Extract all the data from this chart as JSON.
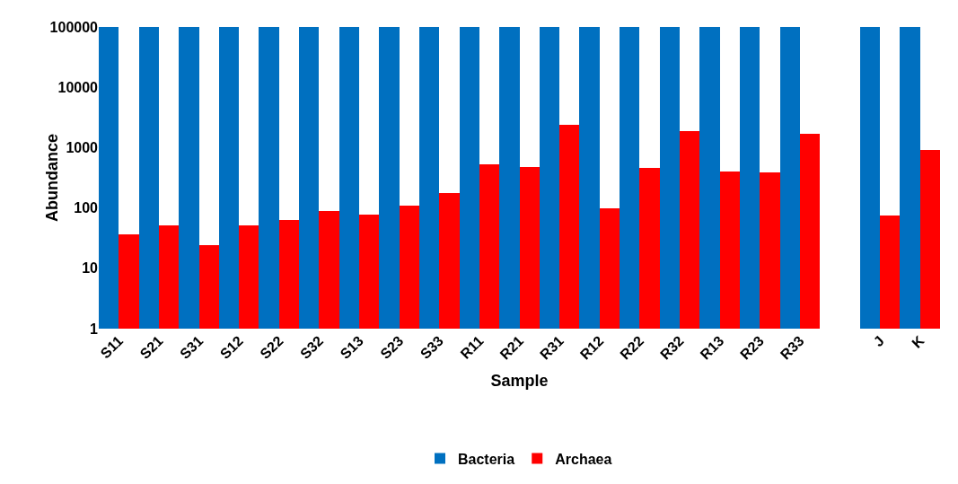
{
  "chart_data": {
    "type": "bar",
    "xlabel": "Sample",
    "ylabel": "Abundance",
    "categories": [
      "S11",
      "S21",
      "S31",
      "S12",
      "S22",
      "S32",
      "S13",
      "S23",
      "S33",
      "R11",
      "R21",
      "R31",
      "R12",
      "R22",
      "R32",
      "R13",
      "R23",
      "R33",
      null,
      "J",
      "K"
    ],
    "series": [
      {
        "name": "Bacteria",
        "color": "#0070c0",
        "values": [
          100000,
          100000,
          100000,
          100000,
          100000,
          100000,
          100000,
          100000,
          100000,
          100000,
          100000,
          100000,
          100000,
          100000,
          100000,
          100000,
          100000,
          100000,
          null,
          100000,
          100000
        ]
      },
      {
        "name": "Archaea",
        "color": "#ff0000",
        "values": [
          37,
          51,
          24,
          51,
          63,
          90,
          78,
          108,
          176,
          530,
          475,
          2400,
          97,
          460,
          1900,
          400,
          385,
          1700,
          null,
          75,
          930
        ]
      }
    ],
    "log": true,
    "ylim": [
      1,
      100000
    ],
    "yticks": [
      1,
      10,
      100,
      1000,
      10000,
      100000
    ],
    "grid": false,
    "legend": "bottom"
  }
}
